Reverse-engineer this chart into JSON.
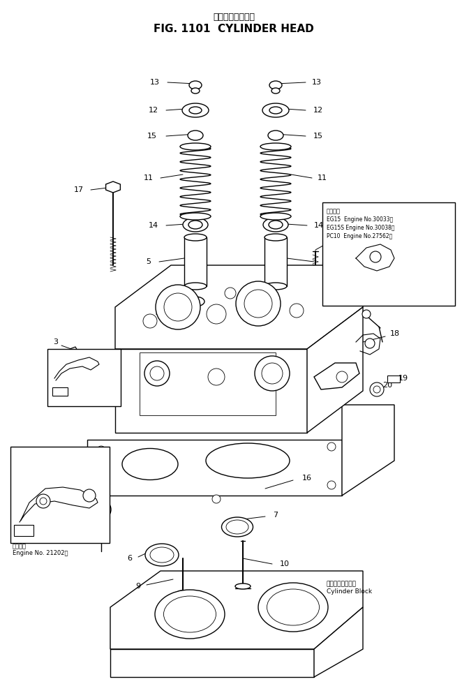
{
  "title_jp": "シリンダヘッド・",
  "title_en": "FIG. 1101  CYLINDER HEAD",
  "bg_color": "#ffffff",
  "line_color": "#000000",
  "fig_width": 6.62,
  "fig_height": 9.8,
  "dpi": 100,
  "text_inset3_line1": "適用号機",
  "text_inset3_line2": "EG15  Engine No.30033～",
  "text_inset3_line3": "EG15S Engine No.30038～",
  "text_inset3_line4": "PC10  Engine No.27562～",
  "text_bottom_left_line1": "適用号機",
  "text_bottom_left_line2": "Engine No. 21202～",
  "text_cylinder_block_jp": "シリンダブロック",
  "text_cylinder_block_en": "Cylinder Block"
}
